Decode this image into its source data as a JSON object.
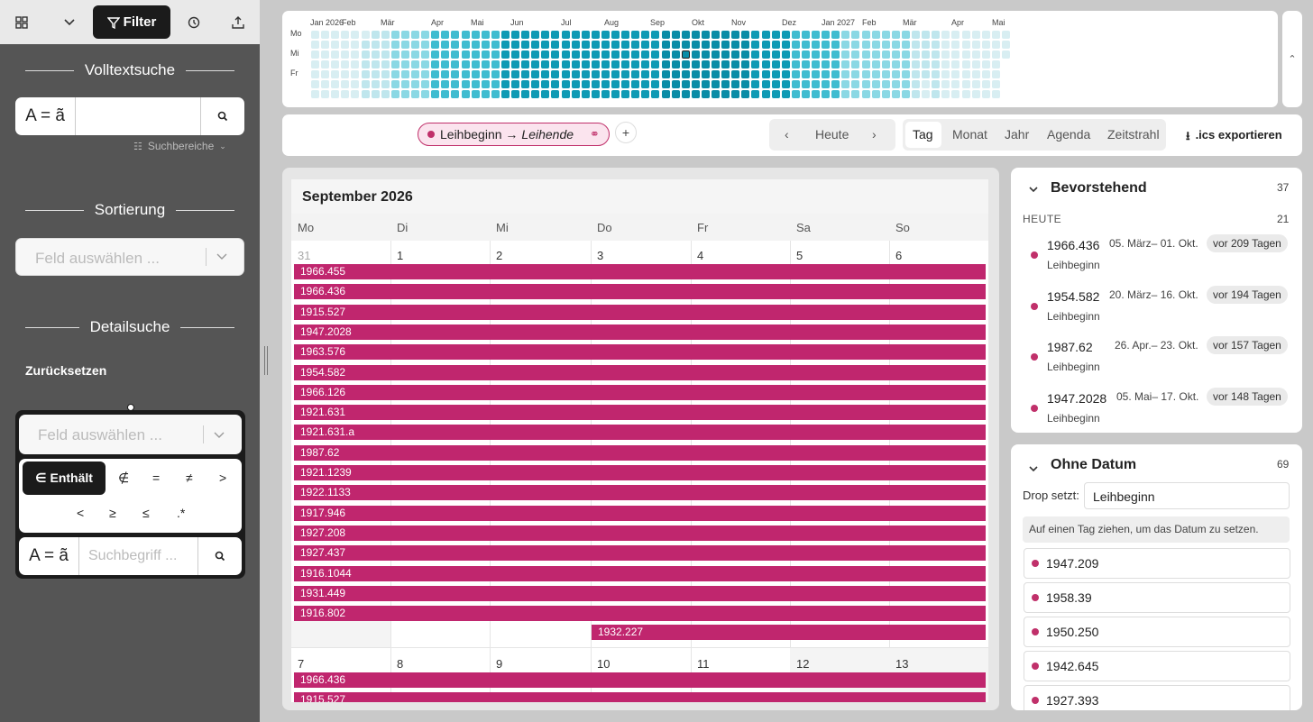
{
  "sidebar": {
    "filter_label": "Filter",
    "fulltext_title": "Volltextsuche",
    "fulltext_aa": "A = ã",
    "search_areas": "Suchbereiche",
    "sort_title": "Sortierung",
    "sort_placeholder": "Feld auswählen ...",
    "detail_title": "Detailsuche",
    "reset_label": "Zurücksetzen",
    "detail_field_placeholder": "Feld auswählen ...",
    "op_contains": "∈ Enthält",
    "ops": [
      "∉",
      "=",
      "≠",
      ">",
      "<",
      "≥",
      "≤",
      ".*"
    ],
    "detail_aa": "A = ã",
    "detail_search_placeholder": "Suchbegriff ..."
  },
  "heatmap": {
    "months": [
      "Jan 2026",
      "Feb",
      "Mär",
      "Apr",
      "Mai",
      "Jun",
      "Jul",
      "Aug",
      "Sep",
      "Okt",
      "Nov",
      "Dez",
      "Jan 2027",
      "Feb",
      "Mär",
      "Apr",
      "Mai"
    ],
    "days": [
      "Mo",
      "Mi",
      "Fr"
    ],
    "colors": [
      "#d8eef2",
      "#bfe6ed",
      "#8ad8e4",
      "#3fbcd0",
      "#0f9ab4",
      "#0a8ca6"
    ]
  },
  "toolbar": {
    "chip_from": "Leihbeginn →",
    "chip_to": "Leihende",
    "today": "Heute",
    "views": [
      "Tag",
      "Monat",
      "Jahr",
      "Agenda",
      "Zeitstrahl"
    ],
    "export": ".ics exportieren"
  },
  "calendar": {
    "title": "September 2026",
    "weekdays": [
      "Mo",
      "Di",
      "Mi",
      "Do",
      "Fr",
      "Sa",
      "So"
    ],
    "week1_days": [
      "31",
      "1",
      "2",
      "3",
      "4",
      "5",
      "6"
    ],
    "week1_events": [
      "1966.455",
      "1966.436",
      "1915.527",
      "1947.2028",
      "1963.576",
      "1954.582",
      "1966.126",
      "1921.631",
      "1921.631.a",
      "1987.62",
      "1921.1239",
      "1922.1133",
      "1917.946",
      "1927.208",
      "1927.437",
      "1916.1044",
      "1931.449",
      "1916.802"
    ],
    "week1_late_event": "1932.227",
    "week2_days": [
      "7",
      "8",
      "9",
      "10",
      "11",
      "12",
      "13"
    ],
    "week2_events": [
      "1966.436",
      "1915.527"
    ]
  },
  "upcoming": {
    "title": "Bevorstehend",
    "count": "37",
    "today_label": "HEUTE",
    "today_count": "21",
    "items": [
      {
        "id": "1966.436",
        "range": "05. März– 01. Okt.",
        "badge": "vor 209 Tagen",
        "field": "Leihbeginn"
      },
      {
        "id": "1954.582",
        "range": "20. März– 16. Okt.",
        "badge": "vor 194 Tagen",
        "field": "Leihbeginn"
      },
      {
        "id": "1987.62",
        "range": "26. Apr.– 23. Okt.",
        "badge": "vor 157 Tagen",
        "field": "Leihbeginn"
      },
      {
        "id": "1947.2028",
        "range": "05. Mai– 17. Okt.",
        "badge": "vor 148 Tagen",
        "field": "Leihbeginn"
      }
    ]
  },
  "nodate": {
    "title": "Ohne Datum",
    "count": "69",
    "drop_label": "Drop setzt:",
    "drop_value": "Leihbeginn",
    "hint": "Auf einen Tag ziehen, um das Datum zu setzen.",
    "items": [
      "1947.209",
      "1958.39",
      "1950.250",
      "1942.645",
      "1927.393"
    ]
  }
}
